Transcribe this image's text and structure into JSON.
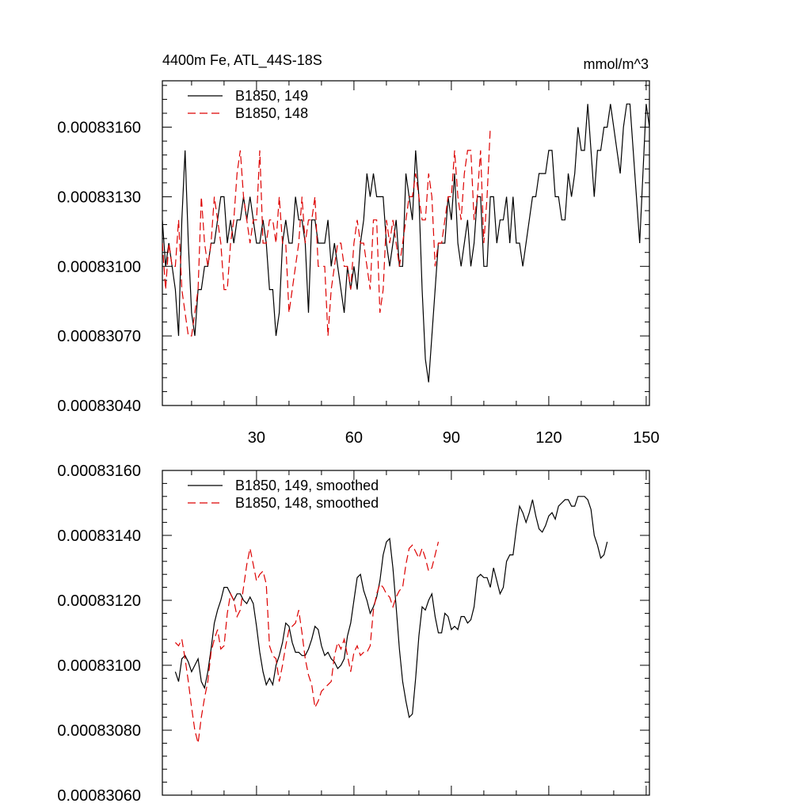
{
  "chart_data": [
    {
      "type": "line",
      "title_left": "4400m Fe, ATL_44S-18S",
      "title_right": "mmol/m^3",
      "xlim": [
        1,
        151
      ],
      "ylim": [
        0.0008304,
        0.0008318
      ],
      "x_ticks": [
        30,
        60,
        90,
        120,
        150
      ],
      "y_ticks": [
        0.0008304,
        0.0008307,
        0.000831,
        0.0008313,
        0.0008316
      ],
      "y_tick_labels": [
        "0.00083040",
        "0.00083070",
        "0.00083100",
        "0.00083130",
        "0.00083160"
      ],
      "series": [
        {
          "name": "B1850, 149",
          "color": "#000000",
          "dash": "solid",
          "x_start": 1,
          "values": [
            0.0008312,
            0.000831,
            0.0008311,
            0.000831,
            0.0008309,
            0.0008307,
            0.0008312,
            0.0008315,
            0.0008311,
            0.0008308,
            0.0008307,
            0.0008309,
            0.0008309,
            0.000831,
            0.000831,
            0.0008311,
            0.0008311,
            0.0008312,
            0.0008313,
            0.0008313,
            0.0008311,
            0.0008312,
            0.0008311,
            0.0008312,
            0.0008312,
            0.0008313,
            0.0008312,
            0.0008313,
            0.0008312,
            0.0008311,
            0.0008311,
            0.0008312,
            0.0008311,
            0.0008309,
            0.0008309,
            0.0008307,
            0.0008308,
            0.0008311,
            0.0008312,
            0.0008311,
            0.0008311,
            0.0008313,
            0.0008312,
            0.0008312,
            0.0008311,
            0.0008308,
            0.0008312,
            0.0008312,
            0.0008311,
            0.0008311,
            0.0008311,
            0.0008312,
            0.000831,
            0.0008311,
            0.000831,
            0.0008309,
            0.0008308,
            0.000831,
            0.0008309,
            0.000831,
            0.0008309,
            0.0008311,
            0.0008312,
            0.0008314,
            0.0008313,
            0.0008314,
            0.0008313,
            0.0008313,
            0.0008313,
            0.0008311,
            0.000831,
            0.0008311,
            0.0008312,
            0.000831,
            0.000831,
            0.0008314,
            0.0008313,
            0.0008312,
            0.0008315,
            0.0008313,
            0.0008309,
            0.0008306,
            0.0008305,
            0.0008307,
            0.0008309,
            0.0008311,
            0.0008311,
            0.0008311,
            0.0008313,
            0.0008312,
            0.0008314,
            0.0008311,
            0.000831,
            0.0008311,
            0.0008312,
            0.000831,
            0.0008311,
            0.0008313,
            0.0008313,
            0.000831,
            0.000831,
            0.0008313,
            0.0008313,
            0.0008311,
            0.0008312,
            0.0008312,
            0.0008313,
            0.0008311,
            0.0008313,
            0.0008311,
            0.0008311,
            0.000831,
            0.0008311,
            0.0008312,
            0.0008313,
            0.0008313,
            0.0008314,
            0.0008314,
            0.0008314,
            0.0008315,
            0.0008315,
            0.0008313,
            0.0008313,
            0.0008312,
            0.0008312,
            0.0008314,
            0.0008313,
            0.0008314,
            0.0008316,
            0.0008315,
            0.0008315,
            0.0008317,
            0.0008315,
            0.0008313,
            0.0008315,
            0.0008315,
            0.0008316,
            0.0008316,
            0.0008317,
            0.0008316,
            0.0008315,
            0.0008314,
            0.0008316,
            0.0008317,
            0.0008317,
            0.0008315,
            0.0008313,
            0.0008311,
            0.0008314,
            0.0008317,
            0.0008316
          ]
        },
        {
          "name": "B1850, 148",
          "color": "#dd0000",
          "dash": "dashed",
          "x_start": 1,
          "values": [
            0.0008311,
            0.0008309,
            0.0008311,
            0.000831,
            0.000831,
            0.0008312,
            0.0008309,
            0.0008308,
            0.0008307,
            0.0008307,
            0.0008308,
            0.0008309,
            0.0008313,
            0.0008311,
            0.000831,
            0.0008311,
            0.0008313,
            0.0008312,
            0.0008311,
            0.0008309,
            0.0008309,
            0.0008311,
            0.0008312,
            0.0008314,
            0.0008315,
            0.0008313,
            0.0008312,
            0.0008311,
            0.0008312,
            0.0008312,
            0.0008315,
            0.0008311,
            0.0008311,
            0.0008312,
            0.0008312,
            0.0008311,
            0.0008313,
            0.0008311,
            0.0008311,
            0.0008308,
            0.0008309,
            0.000831,
            0.0008311,
            0.0008313,
            0.0008311,
            0.0008312,
            0.0008312,
            0.0008313,
            0.000831,
            0.000831,
            0.000831,
            0.0008307,
            0.0008309,
            0.000831,
            0.0008311,
            0.0008311,
            0.000831,
            0.000831,
            0.0008309,
            0.0008311,
            0.0008312,
            0.0008311,
            0.0008311,
            0.000831,
            0.0008309,
            0.0008312,
            0.0008312,
            0.0008308,
            0.0008309,
            0.0008312,
            0.0008311,
            0.0008312,
            0.0008311,
            0.000831,
            0.0008311,
            0.0008312,
            0.0008313,
            0.0008313,
            0.0008314,
            0.0008313,
            0.0008312,
            0.0008312,
            0.0008314,
            0.0008313,
            0.000831,
            0.0008311,
            0.0008311,
            0.0008312,
            0.0008313,
            0.0008313,
            0.0008315,
            0.0008313,
            0.0008312,
            0.0008314,
            0.0008315,
            0.0008315,
            0.0008312,
            0.0008313,
            0.0008315,
            0.0008311,
            0.0008313,
            0.0008316
          ]
        }
      ]
    },
    {
      "type": "line",
      "xlim": [
        1,
        151
      ],
      "ylim": [
        0.0008306,
        0.0008316
      ],
      "x_ticks": [
        30,
        60,
        90,
        120,
        150
      ],
      "y_ticks": [
        0.0008306,
        0.0008308,
        0.000831,
        0.0008312,
        0.0008314,
        0.0008316
      ],
      "y_tick_labels": [
        "0.00083060",
        "0.00083080",
        "0.00083100",
        "0.00083120",
        "0.00083140",
        "0.00083160"
      ],
      "series": [
        {
          "name": "B1850, 149, smoothed",
          "color": "#000000",
          "dash": "solid",
          "x_start": 5,
          "values": [
            0.00083098,
            0.00083095,
            0.00083102,
            0.00083103,
            0.00083101,
            0.00083098,
            0.000831,
            0.00083102,
            0.00083095,
            0.00083093,
            0.00083098,
            0.00083105,
            0.00083113,
            0.00083117,
            0.0008312,
            0.00083124,
            0.00083124,
            0.00083122,
            0.0008312,
            0.00083122,
            0.00083122,
            0.0008312,
            0.00083119,
            0.00083121,
            0.00083119,
            0.00083112,
            0.00083104,
            0.00083098,
            0.00083094,
            0.00083096,
            0.00083094,
            0.000831,
            0.00083103,
            0.00083107,
            0.00083113,
            0.00083112,
            0.00083107,
            0.00083104,
            0.00083104,
            0.00083103,
            0.00083103,
            0.00083105,
            0.00083108,
            0.00083112,
            0.00083111,
            0.00083106,
            0.00083103,
            0.00083104,
            0.00083102,
            0.00083101,
            0.00083099,
            0.000831,
            0.00083102,
            0.00083109,
            0.00083113,
            0.0008312,
            0.00083127,
            0.00083128,
            0.00083123,
            0.0008312,
            0.00083116,
            0.00083118,
            0.00083121,
            0.00083126,
            0.00083134,
            0.00083138,
            0.00083139,
            0.0008313,
            0.00083118,
            0.00083105,
            0.00083095,
            0.00083089,
            0.00083084,
            0.00083085,
            0.00083096,
            0.00083109,
            0.00083118,
            0.00083117,
            0.0008312,
            0.00083122,
            0.00083115,
            0.0008311,
            0.0008311,
            0.00083116,
            0.00083115,
            0.00083111,
            0.00083112,
            0.00083111,
            0.00083115,
            0.00083115,
            0.00083113,
            0.00083114,
            0.00083118,
            0.00083127,
            0.00083128,
            0.00083127,
            0.00083127,
            0.00083124,
            0.0008313,
            0.00083126,
            0.00083122,
            0.00083124,
            0.00083132,
            0.00083134,
            0.00083134,
            0.00083142,
            0.00083149,
            0.00083147,
            0.00083144,
            0.00083147,
            0.00083151,
            0.00083146,
            0.00083142,
            0.00083141,
            0.00083143,
            0.00083146,
            0.00083147,
            0.00083145,
            0.00083149,
            0.0008315,
            0.00083151,
            0.00083151,
            0.00083149,
            0.00083149,
            0.00083152,
            0.00083152,
            0.00083152,
            0.00083151,
            0.00083148,
            0.0008314,
            0.00083137,
            0.00083133,
            0.00083134,
            0.00083138
          ]
        },
        {
          "name": "B1850, 148, smoothed",
          "color": "#dd0000",
          "dash": "dashed",
          "x_start": 5,
          "values": [
            0.00083107,
            0.00083106,
            0.00083108,
            0.00083102,
            0.00083095,
            0.00083087,
            0.0008308,
            0.00083076,
            0.00083084,
            0.0008309,
            0.00083095,
            0.00083104,
            0.00083108,
            0.00083111,
            0.00083105,
            0.00083106,
            0.00083116,
            0.00083122,
            0.0008312,
            0.00083115,
            0.00083117,
            0.00083124,
            0.00083131,
            0.00083136,
            0.00083131,
            0.00083126,
            0.00083128,
            0.00083129,
            0.00083125,
            0.00083106,
            0.00083103,
            0.00083102,
            0.00083095,
            0.000831,
            0.00083106,
            0.00083111,
            0.00083112,
            0.00083113,
            0.00083117,
            0.0008311,
            0.00083102,
            0.00083097,
            0.00083094,
            0.00083087,
            0.00083089,
            0.00083092,
            0.00083093,
            0.00083094,
            0.00083095,
            0.00083103,
            0.00083107,
            0.00083105,
            0.00083108,
            0.00083103,
            0.00083098,
            0.00083104,
            0.00083106,
            0.00083103,
            0.00083104,
            0.00083104,
            0.00083106,
            0.00083117,
            0.00083122,
            0.00083125,
            0.00083124,
            0.00083122,
            0.00083121,
            0.00083118,
            0.00083121,
            0.00083123,
            0.00083124,
            0.00083131,
            0.00083136,
            0.00083137,
            0.00083135,
            0.00083133,
            0.00083136,
            0.00083133,
            0.00083129,
            0.0008313,
            0.00083134,
            0.00083138
          ]
        }
      ]
    }
  ]
}
